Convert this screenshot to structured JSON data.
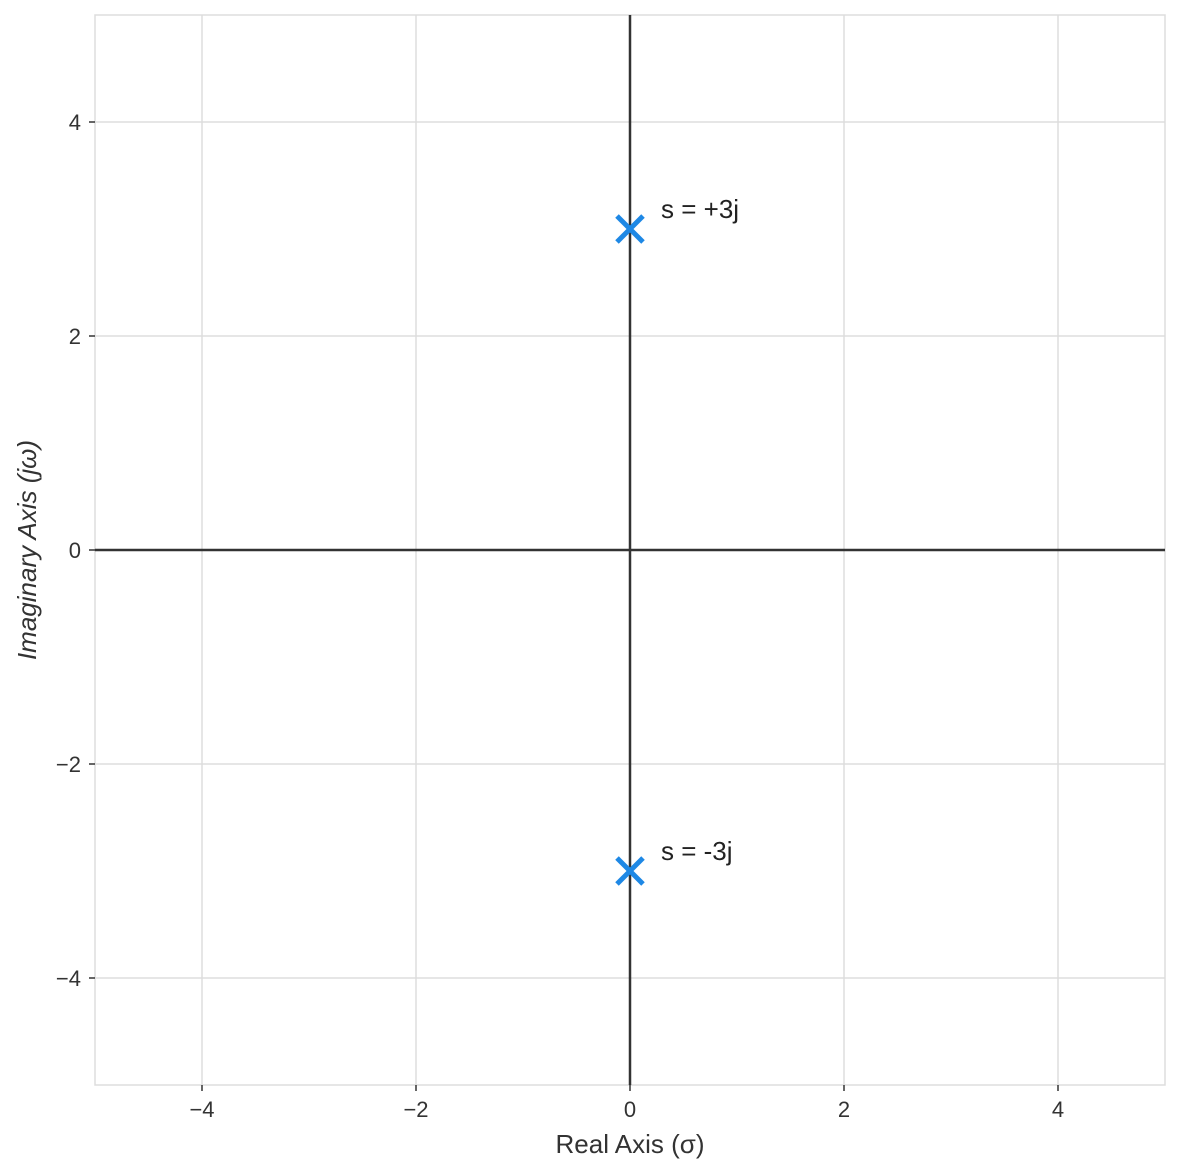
{
  "chart_data": {
    "type": "scatter",
    "xlabel": "Real Axis (σ)",
    "ylabel": "Imaginary Axis (jω)",
    "xlim": [
      -5,
      5
    ],
    "ylim": [
      -5,
      5
    ],
    "x_ticks": [
      -4,
      -2,
      0,
      2,
      4
    ],
    "y_ticks": [
      -4,
      -2,
      0,
      2,
      4
    ],
    "x_tick_labels": [
      "−4",
      "−2",
      "0",
      "2",
      "4"
    ],
    "y_tick_labels": [
      "−4",
      "−2",
      "0",
      "2",
      "4"
    ],
    "grid": true,
    "marker": "x",
    "colors": {
      "marker": "#1e88e5",
      "grid": "#dddddd",
      "axis": "#333333"
    },
    "points": [
      {
        "x": 0,
        "y": 3,
        "label": "s = +3j"
      },
      {
        "x": 0,
        "y": -3,
        "label": "s = -3j"
      }
    ]
  }
}
